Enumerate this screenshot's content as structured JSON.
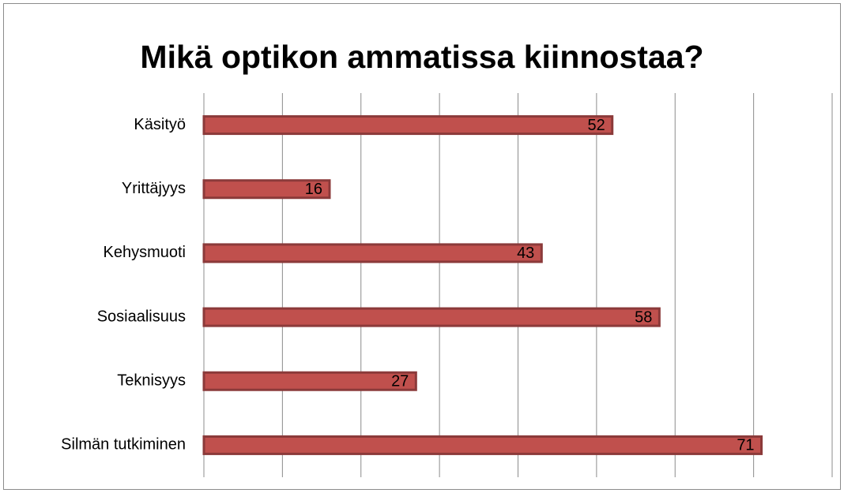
{
  "chart_data": {
    "type": "bar",
    "orientation": "horizontal",
    "title": "Mikä optikon ammatissa kiinnostaa?",
    "categories": [
      "Käsityö",
      "Yrittäjyys",
      "Kehysmuoti",
      "Sosiaalisuus",
      "Teknisyys",
      "Silmän tutkiminen"
    ],
    "values": [
      52,
      16,
      43,
      58,
      27,
      71
    ],
    "color": "#c0504d",
    "xlim": [
      0,
      80
    ],
    "xticks": [
      0,
      10,
      20,
      30,
      40,
      50,
      60,
      70,
      80
    ],
    "grid": true
  }
}
